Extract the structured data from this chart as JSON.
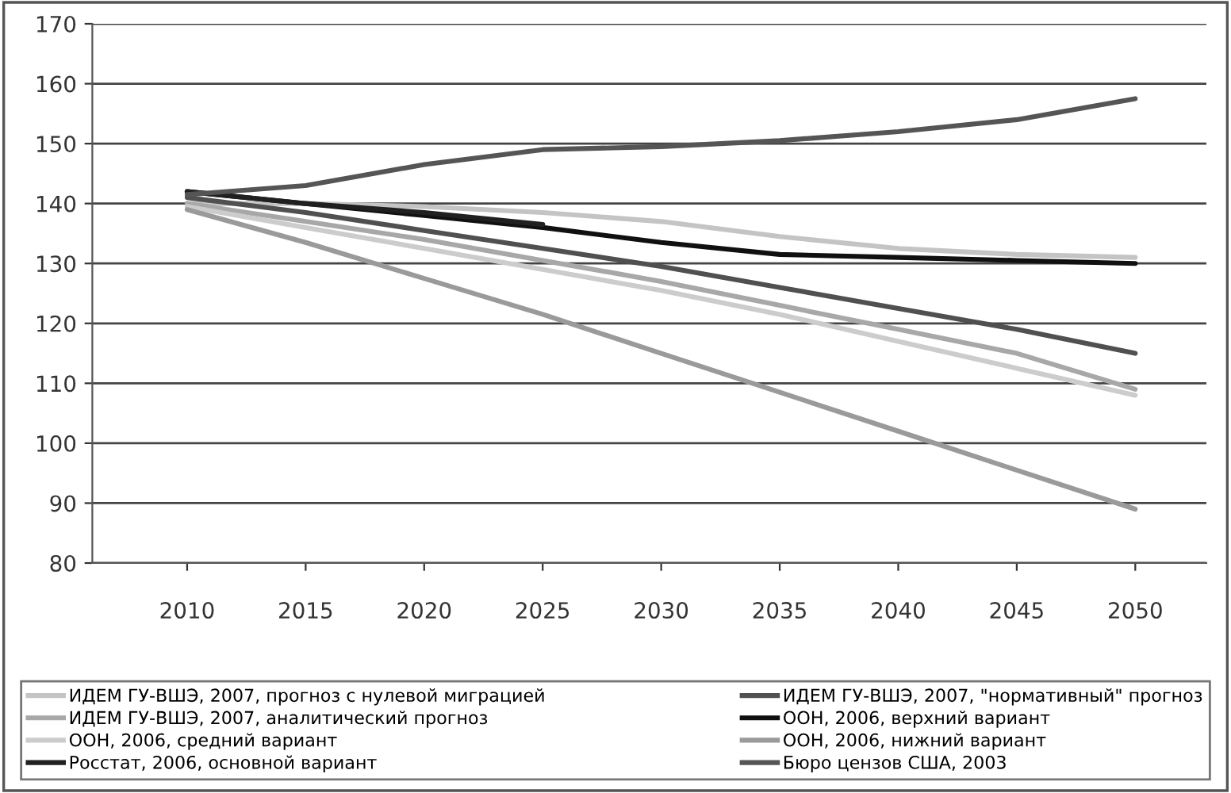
{
  "chart_data": {
    "type": "line",
    "x": [
      2010,
      2015,
      2020,
      2025,
      2030,
      2035,
      2040,
      2045,
      2050
    ],
    "xlim": [
      2006,
      2053
    ],
    "xticks": [
      2010,
      2015,
      2020,
      2025,
      2030,
      2035,
      2040,
      2045,
      2050
    ],
    "ylim": [
      80,
      170
    ],
    "yticks": [
      80,
      90,
      100,
      110,
      120,
      130,
      140,
      150,
      160,
      170
    ],
    "grid": "y",
    "legend": "bottom",
    "marker": "none",
    "line_style": "solid",
    "series": [
      {
        "name": "ИДЕМ ГУ-ВШЭ, 2007, прогноз с нулевой миграцией",
        "color": "#c4c4c4",
        "values": [
          140,
          140,
          139.5,
          138.5,
          137,
          134.5,
          132.5,
          131.5,
          131
        ]
      },
      {
        "name": "ИДЕМ ГУ-ВШЭ, 2007, \"нормативный\" прогноз",
        "color": "#505050",
        "values": [
          141,
          138.5,
          135.5,
          132.5,
          129.5,
          126,
          122.5,
          119,
          115
        ]
      },
      {
        "name": "ИДЕМ ГУ-ВШЭ, 2007, аналитический прогноз",
        "color": "#a8a8a8",
        "values": [
          140,
          137,
          134,
          130.5,
          127,
          123,
          119,
          115,
          109
        ]
      },
      {
        "name": "ООН, 2006, верхний вариант",
        "color": "#101010",
        "values": [
          142,
          140,
          138,
          136,
          133.5,
          131.5,
          131,
          130.5,
          130
        ]
      },
      {
        "name": "ООН, 2006, средний вариант",
        "color": "#cccccc",
        "values": [
          139.5,
          136,
          132.5,
          129,
          125.5,
          121.5,
          117,
          112.5,
          108
        ]
      },
      {
        "name": "ООН, 2006, нижний вариант",
        "color": "#9a9a9a",
        "values": [
          139,
          133.5,
          127.5,
          121.5,
          115,
          108.5,
          102,
          95.5,
          89
        ]
      },
      {
        "name": "Росстат, 2006, основной вариант",
        "color": "#202020",
        "values": [
          142,
          140,
          138.5,
          136.5,
          null,
          null,
          null,
          null,
          null
        ]
      },
      {
        "name": "Бюро цензов США, 2003",
        "color": "#555555",
        "values": [
          141.5,
          143,
          146.5,
          149,
          149.5,
          150.5,
          152,
          154,
          157.5
        ]
      }
    ]
  }
}
